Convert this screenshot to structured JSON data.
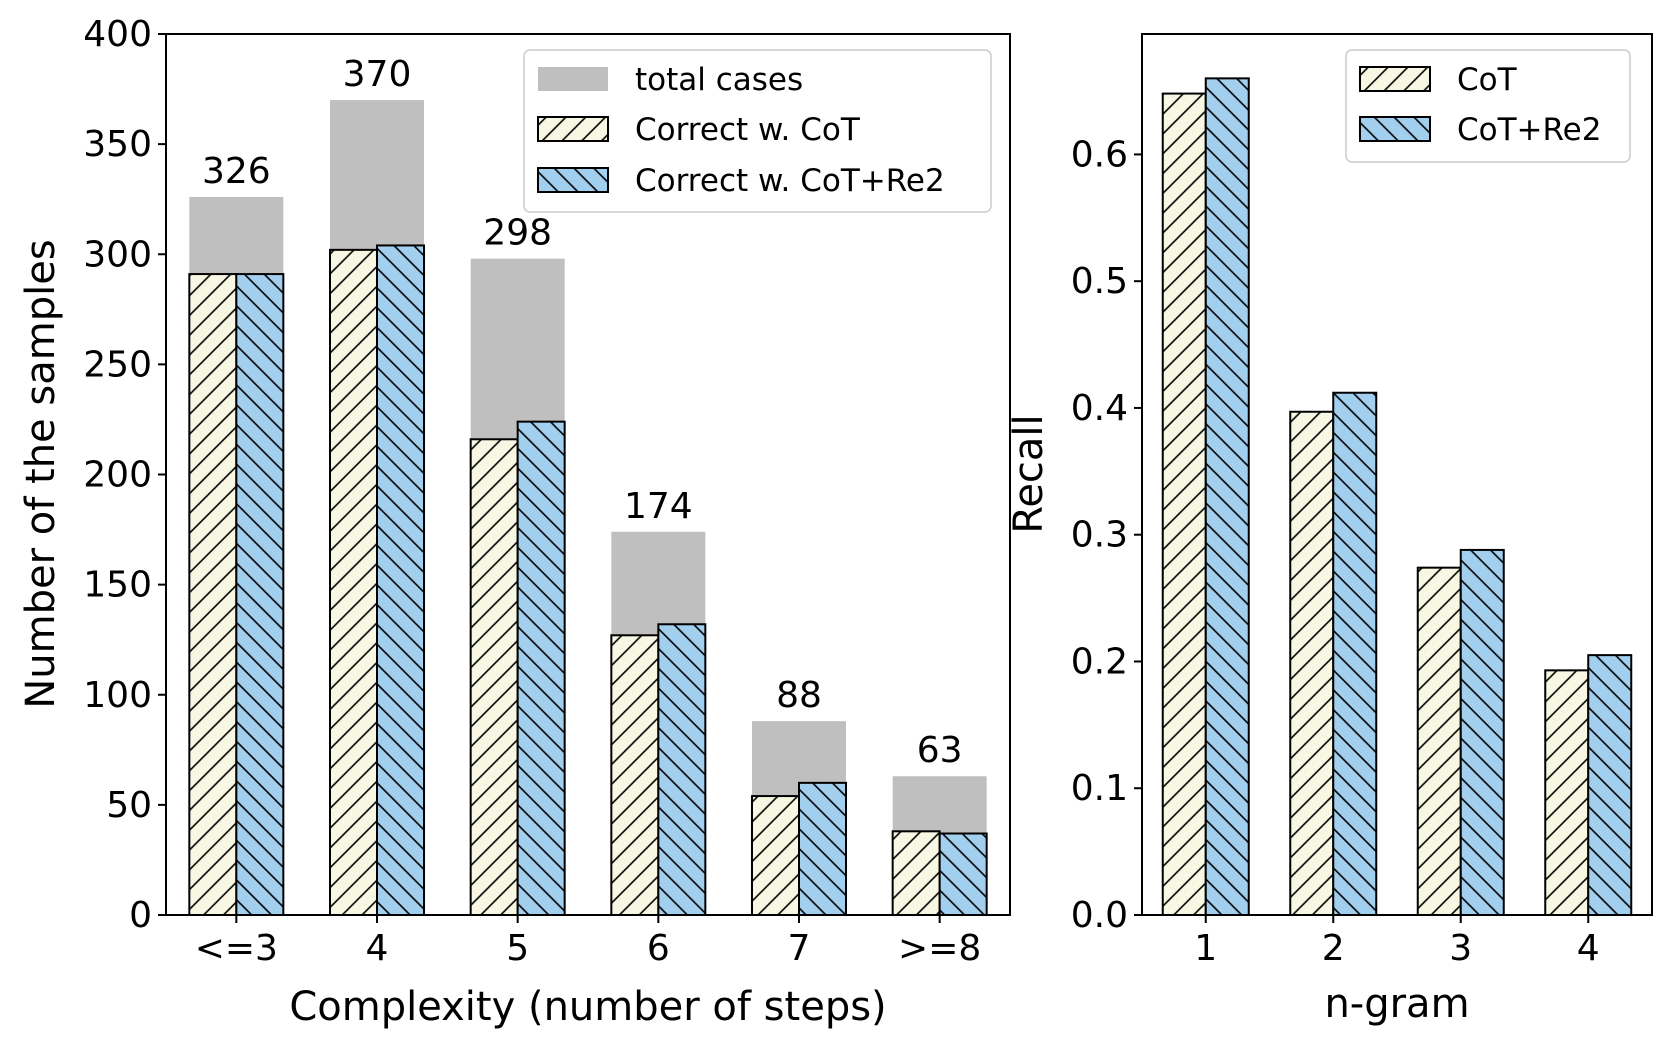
{
  "chart_data": [
    {
      "type": "bar",
      "xlabel": "Complexity (number of steps)",
      "ylabel": "Number of the samples",
      "categories": [
        "<=3",
        "4",
        "5",
        "6",
        "7",
        ">=8"
      ],
      "ylim": [
        0,
        400
      ],
      "yticks": [
        0,
        50,
        100,
        150,
        200,
        250,
        300,
        350,
        400
      ],
      "series": [
        {
          "name": "total cases",
          "values": [
            326,
            370,
            298,
            174,
            88,
            63
          ],
          "color": "#bfbfbf",
          "hatch": "none"
        },
        {
          "name": "Correct w. CoT",
          "values": [
            291,
            302,
            216,
            127,
            54,
            38
          ],
          "color": "#f7f7e3",
          "hatch": "backslash"
        },
        {
          "name": "Correct w. CoT+Re2",
          "values": [
            291,
            304,
            224,
            132,
            60,
            37
          ],
          "color": "#a3cfef",
          "hatch": "slash"
        }
      ],
      "data_labels": [
        "326",
        "370",
        "298",
        "174",
        "88",
        "63"
      ],
      "legend_position": "top-right"
    },
    {
      "type": "bar",
      "xlabel": "n-gram",
      "ylabel": "Recall",
      "categories": [
        "1",
        "2",
        "3",
        "4"
      ],
      "ylim": [
        0,
        0.695
      ],
      "yticks": [
        0.0,
        0.1,
        0.2,
        0.3,
        0.4,
        0.5,
        0.6
      ],
      "ytick_labels": [
        "0.0",
        "0.1",
        "0.2",
        "0.3",
        "0.4",
        "0.5",
        "0.6"
      ],
      "series": [
        {
          "name": "CoT",
          "values": [
            0.648,
            0.397,
            0.274,
            0.193
          ],
          "color": "#f7f7e3",
          "hatch": "backslash"
        },
        {
          "name": "CoT+Re2",
          "values": [
            0.66,
            0.412,
            0.288,
            0.205
          ],
          "color": "#a3cfef",
          "hatch": "slash"
        }
      ],
      "legend_position": "top-right"
    }
  ]
}
